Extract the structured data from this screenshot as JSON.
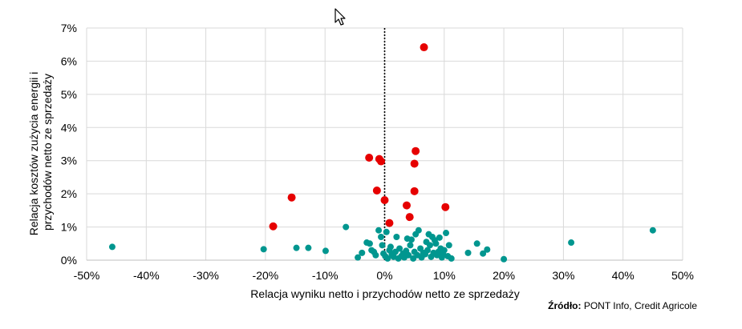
{
  "chart_data": {
    "type": "scatter",
    "xlabel": "Relacja wyniku netto i przychodów netto ze sprzedaży",
    "ylabel": "Relacja kosztów zużycia energii i przychodów netto ze sprzedaży",
    "ylabel_lines": [
      "Relacja kosztów zużycia energii i",
      "przychodów netto ze sprzedaży"
    ],
    "xlim": [
      -0.5,
      0.5
    ],
    "ylim": [
      0,
      0.07
    ],
    "x_ticks": [
      -0.5,
      -0.4,
      -0.3,
      -0.2,
      -0.1,
      0,
      0.1,
      0.2,
      0.3,
      0.4,
      0.5
    ],
    "x_tick_labels": [
      "-50%",
      "-40%",
      "-30%",
      "-20%",
      "-10%",
      "0%",
      "10%",
      "20%",
      "30%",
      "40%",
      "50%"
    ],
    "y_ticks": [
      0,
      0.01,
      0.02,
      0.03,
      0.04,
      0.05,
      0.06,
      0.07
    ],
    "y_tick_labels": [
      "0%",
      "1%",
      "2%",
      "3%",
      "4%",
      "5%",
      "6%",
      "7%"
    ],
    "grid": true,
    "reference_line": {
      "x": 0,
      "style": "dotted",
      "color": "#000000"
    },
    "series": [
      {
        "color": "#00968f",
        "points": [
          [
            -0.457,
            0.004
          ],
          [
            -0.203,
            0.0033
          ],
          [
            -0.148,
            0.0037
          ],
          [
            -0.128,
            0.0037
          ],
          [
            -0.099,
            0.0028
          ],
          [
            -0.065,
            0.01
          ],
          [
            -0.045,
            0.0008
          ],
          [
            -0.038,
            0.0022
          ],
          [
            -0.03,
            0.0053
          ],
          [
            -0.025,
            0.005
          ],
          [
            -0.022,
            0.003
          ],
          [
            -0.018,
            0.0025
          ],
          [
            -0.015,
            0.0015
          ],
          [
            -0.01,
            0.009
          ],
          [
            -0.006,
            0.007
          ],
          [
            -0.004,
            0.0045
          ],
          [
            -0.002,
            0.002
          ],
          [
            0.001,
            0.0012
          ],
          [
            0.003,
            0.0085
          ],
          [
            0.005,
            0.0005
          ],
          [
            0.008,
            0.003
          ],
          [
            0.01,
            0.004
          ],
          [
            0.012,
            0.0018
          ],
          [
            0.015,
            0.001
          ],
          [
            0.018,
            0.0025
          ],
          [
            0.02,
            0.007
          ],
          [
            0.023,
            0.0005
          ],
          [
            0.025,
            0.0035
          ],
          [
            0.028,
            0.0012
          ],
          [
            0.031,
            0.002
          ],
          [
            0.033,
            0.0008
          ],
          [
            0.036,
            0.0028
          ],
          [
            0.038,
            0.0065
          ],
          [
            0.04,
            0.0015
          ],
          [
            0.043,
            0.0045
          ],
          [
            0.045,
            0.0062
          ],
          [
            0.048,
            0.0005
          ],
          [
            0.05,
            0.0025
          ],
          [
            0.052,
            0.0078
          ],
          [
            0.055,
            0.0015
          ],
          [
            0.057,
            0.009
          ],
          [
            0.06,
            0.0035
          ],
          [
            0.062,
            0.0008
          ],
          [
            0.065,
            0.0022
          ],
          [
            0.068,
            0.0018
          ],
          [
            0.07,
            0.0055
          ],
          [
            0.072,
            0.003
          ],
          [
            0.074,
            0.0078
          ],
          [
            0.076,
            0.0045
          ],
          [
            0.078,
            0.001
          ],
          [
            0.08,
            0.007
          ],
          [
            0.082,
            0.0022
          ],
          [
            0.084,
            0.006
          ],
          [
            0.086,
            0.005
          ],
          [
            0.088,
            0.0015
          ],
          [
            0.09,
            0.0025
          ],
          [
            0.092,
            0.0068
          ],
          [
            0.094,
            0.0035
          ],
          [
            0.096,
            0.0008
          ],
          [
            0.098,
            0.0018
          ],
          [
            0.1,
            0.003
          ],
          [
            0.103,
            0.0082
          ],
          [
            0.106,
            0.0012
          ],
          [
            0.108,
            0.0045
          ],
          [
            0.112,
            0.0005
          ],
          [
            0.14,
            0.0022
          ],
          [
            0.155,
            0.005
          ],
          [
            0.165,
            0.002
          ],
          [
            0.172,
            0.0032
          ],
          [
            0.2,
            0.0003
          ],
          [
            0.313,
            0.0053
          ],
          [
            0.45,
            0.009
          ]
        ]
      },
      {
        "color": "#e60000",
        "points": [
          [
            0.066,
            0.0642
          ],
          [
            -0.026,
            0.0309
          ],
          [
            -0.009,
            0.0305
          ],
          [
            -0.006,
            0.0298
          ],
          [
            0.052,
            0.0329
          ],
          [
            0.05,
            0.0291
          ],
          [
            0.05,
            0.0208
          ],
          [
            -0.013,
            0.021
          ],
          [
            -0.156,
            0.0189
          ],
          [
            0.0,
            0.0181
          ],
          [
            0.037,
            0.0165
          ],
          [
            0.102,
            0.016
          ],
          [
            0.042,
            0.013
          ],
          [
            0.008,
            0.0112
          ],
          [
            -0.187,
            0.0102
          ]
        ]
      }
    ]
  },
  "source": {
    "label": "Źródło:",
    "text": " PONT Info, Credit Agricole"
  }
}
